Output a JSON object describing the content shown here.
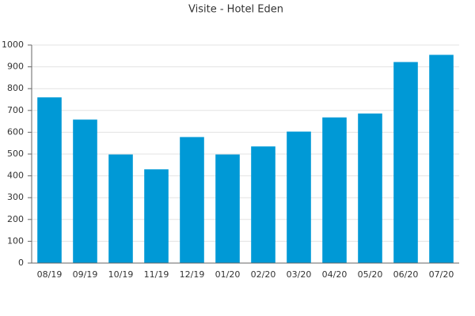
{
  "chart_data": {
    "type": "bar",
    "title": "Visite - Hotel Eden",
    "categories": [
      "08/19",
      "09/19",
      "10/19",
      "11/19",
      "12/19",
      "01/20",
      "02/20",
      "03/20",
      "04/20",
      "05/20",
      "06/20",
      "07/20"
    ],
    "values": [
      760,
      658,
      498,
      430,
      578,
      498,
      535,
      603,
      668,
      686,
      922,
      955
    ],
    "color": "#0099d6",
    "ylim": [
      0,
      1000
    ],
    "yticks": [
      0,
      100,
      200,
      300,
      400,
      500,
      600,
      700,
      800,
      900,
      1000
    ],
    "grid": true
  }
}
